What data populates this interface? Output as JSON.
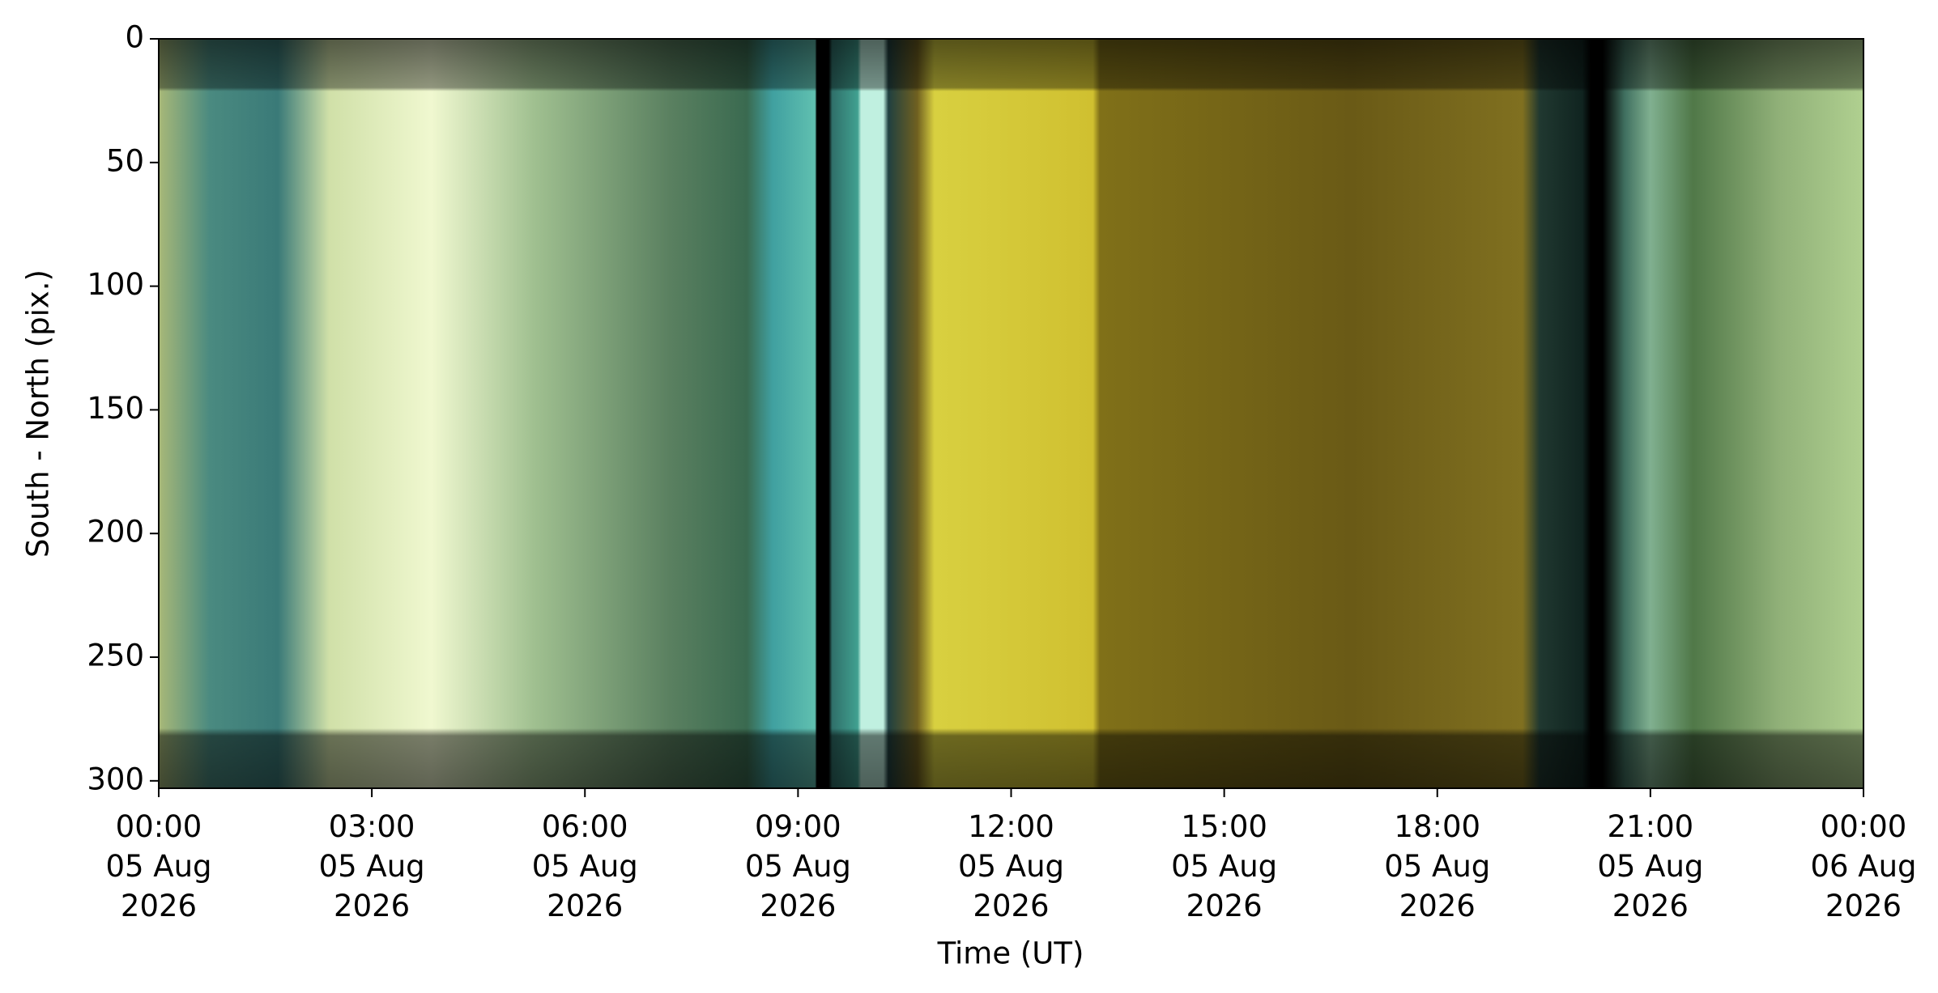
{
  "chart_data": {
    "type": "keogram",
    "x_label": "Time (UT)",
    "y_label": "South - North (pix.)",
    "xlim": [
      "2026-08-05T00:00Z",
      "2026-08-06T00:00Z"
    ],
    "xticks": [
      {
        "value": "2026-08-05T00:00Z",
        "label": "00:00\n05 Aug\n2026"
      },
      {
        "value": "2026-08-05T03:00Z",
        "label": "03:00\n05 Aug\n2026"
      },
      {
        "value": "2026-08-05T06:00Z",
        "label": "06:00\n05 Aug\n2026"
      },
      {
        "value": "2026-08-05T09:00Z",
        "label": "09:00\n05 Aug\n2026"
      },
      {
        "value": "2026-08-05T12:00Z",
        "label": "12:00\n05 Aug\n2026"
      },
      {
        "value": "2026-08-05T15:00Z",
        "label": "15:00\n05 Aug\n2026"
      },
      {
        "value": "2026-08-05T18:00Z",
        "label": "18:00\n05 Aug\n2026"
      },
      {
        "value": "2026-08-05T21:00Z",
        "label": "21:00\n05 Aug\n2026"
      },
      {
        "value": "2026-08-06T00:00Z",
        "label": "00:00\n06 Aug\n2026"
      }
    ],
    "ylim": [
      303,
      0
    ],
    "yticks": [
      0,
      50,
      100,
      150,
      200,
      250,
      300
    ]
  }
}
